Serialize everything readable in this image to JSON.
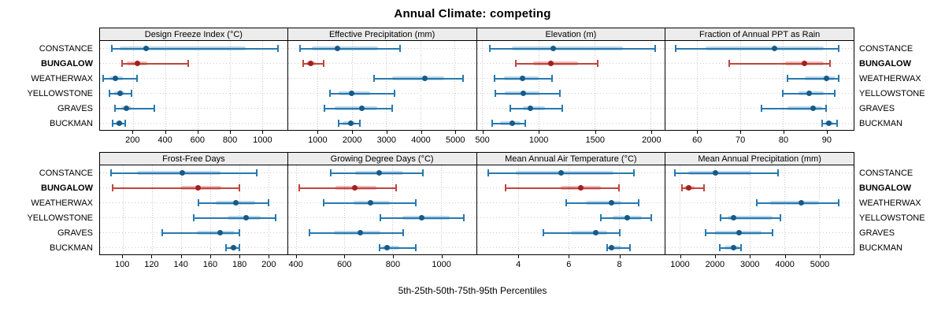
{
  "title": "Annual Climate: competing",
  "footer": "5th-25th-50th-75th-95th Percentiles",
  "groups": [
    "CONSTANCE",
    "BUNGALOW",
    "WEATHERWAX",
    "YELLOWSTONE",
    "GRAVES",
    "BUCKMAN"
  ],
  "highlight_group": "BUNGALOW",
  "colors": {
    "blue_line": "#2779b0",
    "blue_band": "rgba(39,121,176,0.30)",
    "blue_dot": "#175a87",
    "red_line": "#c0453f",
    "red_band": "rgba(192,69,63,0.35)",
    "red_dot": "#a31f1f",
    "strip_bg": "#ececec",
    "grid": "#c6c6c6"
  },
  "chart_data": [
    {
      "type": "dotplot-percentiles",
      "row": 1,
      "col": 1,
      "title": "Design Freeze Index (°C)",
      "percentiles": [
        5,
        25,
        50,
        75,
        95
      ],
      "xlim": [
        -5,
        1157
      ],
      "ticks": [
        200,
        400,
        600,
        800,
        1000
      ],
      "series": [
        {
          "name": "CONSTANCE",
          "values": [
            70,
            115,
            283,
            900,
            1100
          ]
        },
        {
          "name": "BUNGALOW",
          "values": [
            130,
            160,
            228,
            290,
            540
          ]
        },
        {
          "name": "WEATHERWAX",
          "values": [
            15,
            55,
            90,
            135,
            225
          ]
        },
        {
          "name": "YELLOWSTONE",
          "values": [
            55,
            85,
            120,
            148,
            190
          ]
        },
        {
          "name": "GRAVES",
          "values": [
            90,
            125,
            160,
            192,
            330
          ]
        },
        {
          "name": "BUCKMAN",
          "values": [
            75,
            95,
            115,
            135,
            150
          ]
        }
      ]
    },
    {
      "type": "dotplot-percentiles",
      "row": 1,
      "col": 2,
      "title": "Effective Precipitation (mm)",
      "percentiles": [
        5,
        25,
        50,
        75,
        95
      ],
      "xlim": [
        138,
        5624
      ],
      "ticks": [
        1000,
        2000,
        3000,
        4000,
        5000
      ],
      "series": [
        {
          "name": "CONSTANCE",
          "values": [
            480,
            830,
            1590,
            2770,
            3400
          ]
        },
        {
          "name": "BUNGALOW",
          "values": [
            580,
            680,
            810,
            950,
            1180
          ]
        },
        {
          "name": "WEATHERWAX",
          "values": [
            2650,
            3170,
            4120,
            4690,
            5240
          ]
        },
        {
          "name": "YELLOWSTONE",
          "values": [
            1360,
            1620,
            2000,
            2540,
            3240
          ]
        },
        {
          "name": "GRAVES",
          "values": [
            1200,
            1500,
            2290,
            2750,
            3180
          ]
        },
        {
          "name": "BUCKMAN",
          "values": [
            1620,
            1720,
            1960,
            2100,
            2230
          ]
        }
      ]
    },
    {
      "type": "dotplot-percentiles",
      "row": 1,
      "col": 3,
      "title": "Elevation (m)",
      "percentiles": [
        5,
        25,
        50,
        75,
        95
      ],
      "xlim": [
        451,
        2125
      ],
      "ticks": [
        500,
        1000,
        1500,
        2000
      ],
      "series": [
        {
          "name": "CONSTANCE",
          "values": [
            570,
            760,
            1130,
            1750,
            2040
          ]
        },
        {
          "name": "BUNGALOW",
          "values": [
            800,
            950,
            1110,
            1350,
            1530
          ]
        },
        {
          "name": "WEATHERWAX",
          "values": [
            610,
            690,
            860,
            1000,
            1120
          ]
        },
        {
          "name": "YELLOWSTONE",
          "values": [
            615,
            700,
            865,
            1010,
            1190
          ]
        },
        {
          "name": "GRAVES",
          "values": [
            750,
            860,
            930,
            1060,
            1215
          ]
        },
        {
          "name": "BUCKMAN",
          "values": [
            590,
            660,
            770,
            840,
            885
          ]
        }
      ]
    },
    {
      "type": "dotplot-percentiles",
      "row": 1,
      "col": 4,
      "title": "Fraction of Annual PPT as Rain",
      "percentiles": [
        5,
        25,
        50,
        75,
        95
      ],
      "xlim": [
        52.7,
        96.4
      ],
      "ticks": [
        60,
        70,
        80,
        90
      ],
      "series": [
        {
          "name": "CONSTANCE",
          "values": [
            55,
            62,
            78,
            89.5,
            93
          ]
        },
        {
          "name": "BUNGALOW",
          "values": [
            67.5,
            80.5,
            85,
            89.5,
            91
          ]
        },
        {
          "name": "WEATHERWAX",
          "values": [
            81,
            85,
            90,
            92,
            93
          ]
        },
        {
          "name": "YELLOWSTONE",
          "values": [
            80,
            83.5,
            86,
            89.5,
            92
          ]
        },
        {
          "name": "GRAVES",
          "values": [
            75,
            81,
            87,
            89,
            90
          ]
        },
        {
          "name": "BUCKMAN",
          "values": [
            89,
            89.8,
            90.6,
            91.6,
            92.6
          ]
        }
      ]
    },
    {
      "type": "dotplot-percentiles",
      "row": 2,
      "col": 1,
      "title": "Frost-Free Days",
      "percentiles": [
        5,
        25,
        50,
        75,
        95
      ],
      "xlim": [
        84.3,
        213.1
      ],
      "ticks": [
        100,
        120,
        140,
        160,
        180,
        200
      ],
      "series": [
        {
          "name": "CONSTANCE",
          "values": [
            92,
            110,
            141,
            167,
            192
          ]
        },
        {
          "name": "BUNGALOW",
          "values": [
            93,
            140,
            152,
            168,
            180
          ]
        },
        {
          "name": "WEATHERWAX",
          "values": [
            152,
            164,
            178,
            191,
            200
          ]
        },
        {
          "name": "YELLOWSTONE",
          "values": [
            149,
            172,
            185,
            195,
            205
          ]
        },
        {
          "name": "GRAVES",
          "values": [
            127,
            151,
            167,
            177,
            180
          ]
        },
        {
          "name": "BUCKMAN",
          "values": [
            171,
            173.5,
            176,
            178.5,
            180
          ]
        }
      ]
    },
    {
      "type": "dotplot-percentiles",
      "row": 2,
      "col": 2,
      "title": "Growing Degree Days (°C)",
      "percentiles": [
        5,
        25,
        50,
        75,
        95
      ],
      "xlim": [
        367.6,
        1145.7
      ],
      "ticks": [
        400,
        600,
        800,
        1000
      ],
      "series": [
        {
          "name": "CONSTANCE",
          "values": [
            545,
            645,
            745,
            845,
            925
          ]
        },
        {
          "name": "BUNGALOW",
          "values": [
            415,
            565,
            645,
            735,
            815
          ]
        },
        {
          "name": "WEATHERWAX",
          "values": [
            515,
            640,
            710,
            790,
            895
          ]
        },
        {
          "name": "YELLOWSTONE",
          "values": [
            750,
            840,
            920,
            1035,
            1095
          ]
        },
        {
          "name": "GRAVES",
          "values": [
            455,
            557,
            668,
            750,
            845
          ]
        },
        {
          "name": "BUCKMAN",
          "values": [
            748,
            757,
            778,
            828,
            898
          ]
        }
      ]
    },
    {
      "type": "dotplot-percentiles",
      "row": 2,
      "col": 3,
      "title": "Mean Annual Air Temperature (°C)",
      "percentiles": [
        5,
        25,
        50,
        75,
        95
      ],
      "xlim": [
        2.36,
        9.83
      ],
      "ticks": [
        4,
        6,
        8
      ],
      "series": [
        {
          "name": "CONSTANCE",
          "values": [
            2.8,
            3.9,
            5.7,
            7.8,
            8.6
          ]
        },
        {
          "name": "BUNGALOW",
          "values": [
            3.5,
            5.7,
            6.5,
            7.3,
            8.0
          ]
        },
        {
          "name": "WEATHERWAX",
          "values": [
            5.9,
            6.7,
            7.7,
            8.1,
            8.8
          ]
        },
        {
          "name": "YELLOWSTONE",
          "values": [
            7.3,
            7.75,
            8.35,
            8.9,
            9.3
          ]
        },
        {
          "name": "GRAVES",
          "values": [
            5.0,
            6.1,
            7.1,
            7.55,
            8.05
          ]
        },
        {
          "name": "BUCKMAN",
          "values": [
            7.55,
            7.65,
            7.7,
            8.1,
            8.45
          ]
        }
      ]
    },
    {
      "type": "dotplot-percentiles",
      "row": 2,
      "col": 4,
      "title": "Mean Annual Precipitation (mm)",
      "percentiles": [
        5,
        25,
        50,
        75,
        95
      ],
      "xlim": [
        588,
        5993
      ],
      "ticks": [
        1000,
        2000,
        3000,
        4000,
        5000
      ],
      "series": [
        {
          "name": "CONSTANCE",
          "values": [
            850,
            1230,
            2020,
            3060,
            3810
          ]
        },
        {
          "name": "BUNGALOW",
          "values": [
            1050,
            1130,
            1260,
            1430,
            1700
          ]
        },
        {
          "name": "WEATHERWAX",
          "values": [
            3200,
            3600,
            4480,
            5000,
            5560
          ]
        },
        {
          "name": "YELLOWSTONE",
          "values": [
            2170,
            2380,
            2550,
            3650,
            3880
          ]
        },
        {
          "name": "GRAVES",
          "values": [
            1740,
            2000,
            2700,
            3350,
            3660
          ]
        },
        {
          "name": "BUCKMAN",
          "values": [
            2135,
            2280,
            2540,
            2700,
            2750
          ]
        }
      ]
    }
  ]
}
